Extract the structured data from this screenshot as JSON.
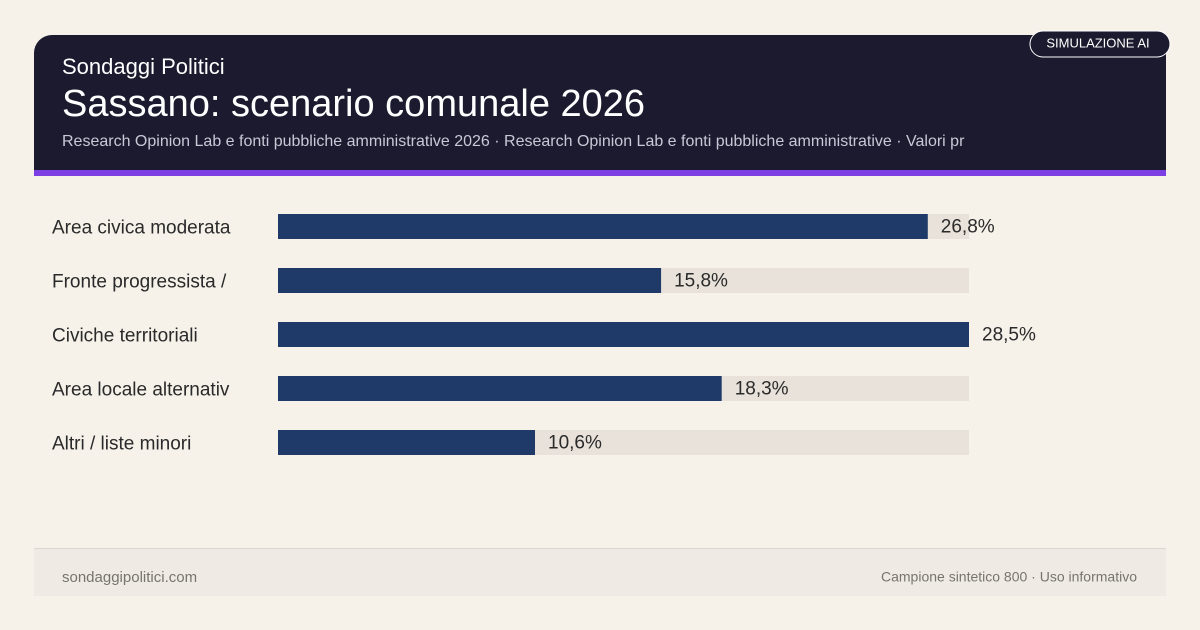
{
  "header": {
    "kicker": "Sondaggi Politici",
    "title": "Sassano: scenario comunale 2026",
    "subtitle": "Research Opinion Lab e fonti pubbliche amministrative 2026 · Research Opinion Lab e fonti pubbliche amministrative · Valori pr",
    "badge": "SIMULAZIONE AI"
  },
  "chart_data": {
    "type": "bar",
    "orientation": "horizontal",
    "categories": [
      "Area civica moderata",
      "Fronte progressista /",
      "Civiche territoriali",
      "Area locale alternativ",
      "Altri / liste minori"
    ],
    "values": [
      26.8,
      15.8,
      28.5,
      18.3,
      10.6
    ],
    "value_labels": [
      "26,8%",
      "15,8%",
      "28,5%",
      "18,3%",
      "10,6%"
    ],
    "xlim": [
      0,
      28.5
    ],
    "color": "#1f3a68",
    "track_color": "#e8e2da"
  },
  "footer": {
    "left": "sondaggipolitici.com",
    "right": "Campione sintetico 800 · Uso informativo"
  }
}
